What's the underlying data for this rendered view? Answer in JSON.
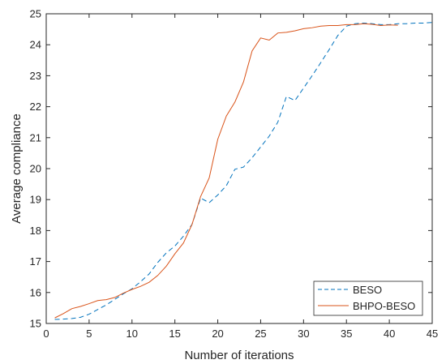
{
  "chart_data": {
    "type": "line",
    "xlabel": "Number of iterations",
    "ylabel": "Average compliance",
    "xlim": [
      0,
      45
    ],
    "ylim": [
      15,
      25
    ],
    "xticks": [
      "0",
      "5",
      "10",
      "15",
      "20",
      "25",
      "30",
      "35",
      "40",
      "45"
    ],
    "yticks": [
      "15",
      "16",
      "17",
      "18",
      "19",
      "20",
      "21",
      "22",
      "23",
      "24",
      "25"
    ],
    "grid": false,
    "legend_position": "bottom-right",
    "series": [
      {
        "name": "BESO",
        "color": "#0072bd",
        "style": "dashed",
        "x": [
          1,
          2,
          3,
          4,
          5,
          6,
          7,
          8,
          9,
          10,
          11,
          12,
          13,
          14,
          15,
          16,
          17,
          18,
          19,
          20,
          21,
          22,
          23,
          24,
          25,
          26,
          27,
          28,
          29,
          30,
          31,
          32,
          33,
          34,
          35,
          36,
          37,
          38,
          39,
          40,
          41,
          42,
          43,
          44,
          45
        ],
        "y": [
          15.13,
          15.14,
          15.16,
          15.2,
          15.3,
          15.45,
          15.6,
          15.78,
          15.96,
          16.12,
          16.35,
          16.6,
          16.97,
          17.28,
          17.5,
          17.82,
          18.2,
          19.05,
          18.9,
          19.15,
          19.45,
          19.98,
          20.05,
          20.35,
          20.7,
          21.05,
          21.5,
          22.33,
          22.2,
          22.6,
          23.0,
          23.42,
          23.85,
          24.3,
          24.6,
          24.68,
          24.7,
          24.68,
          24.65,
          24.65,
          24.68,
          24.68,
          24.7,
          24.7,
          24.72
        ]
      },
      {
        "name": "BHPO-BESO",
        "color": "#d95319",
        "style": "solid",
        "x": [
          1,
          2,
          3,
          4,
          5,
          6,
          7,
          8,
          9,
          10,
          11,
          12,
          13,
          14,
          15,
          16,
          17,
          18,
          19,
          20,
          21,
          22,
          23,
          24,
          25,
          26,
          27,
          28,
          29,
          30,
          31,
          32,
          33,
          34,
          35,
          36,
          37,
          38,
          39,
          40,
          41
        ],
        "y": [
          15.18,
          15.32,
          15.48,
          15.55,
          15.64,
          15.74,
          15.77,
          15.84,
          15.98,
          16.1,
          16.2,
          16.33,
          16.55,
          16.85,
          17.25,
          17.6,
          18.2,
          19.1,
          19.7,
          20.95,
          21.7,
          22.15,
          22.8,
          23.8,
          24.22,
          24.15,
          24.38,
          24.4,
          24.45,
          24.52,
          24.55,
          24.6,
          24.62,
          24.62,
          24.65,
          24.65,
          24.68,
          24.66,
          24.62,
          24.64,
          24.63
        ]
      }
    ]
  }
}
